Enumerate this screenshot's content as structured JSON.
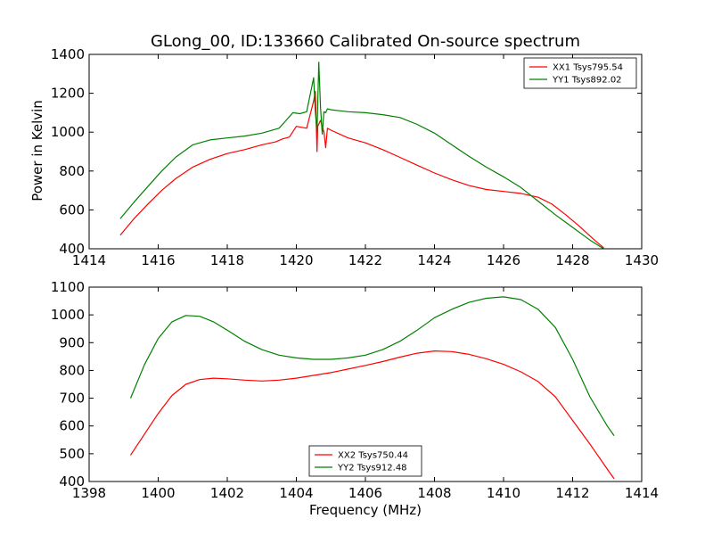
{
  "chart_data": [
    {
      "type": "line",
      "title": "GLong_00, ID:133660 Calibrated On-source spectrum",
      "xlabel": "",
      "ylabel": "Power in Kelvin",
      "xlim": [
        1414,
        1430
      ],
      "ylim": [
        400,
        1400
      ],
      "xticks": [
        "1414",
        "1416",
        "1418",
        "1420",
        "1422",
        "1424",
        "1426",
        "1428",
        "1430"
      ],
      "yticks": [
        "400",
        "600",
        "800",
        "1000",
        "1200",
        "1400"
      ],
      "legend_position": "top-right",
      "series": [
        {
          "name": "XX1 Tsys795.54",
          "color": "#ff0000",
          "x": [
            1414.9,
            1415.3,
            1415.7,
            1416.1,
            1416.5,
            1417.0,
            1417.5,
            1418.0,
            1418.5,
            1419.0,
            1419.4,
            1419.6,
            1419.8,
            1420.0,
            1420.3,
            1420.5,
            1420.55,
            1420.6,
            1420.62,
            1420.7,
            1420.8,
            1420.85,
            1420.9,
            1421.0,
            1421.5,
            1422.0,
            1422.5,
            1423.0,
            1423.5,
            1424.0,
            1424.5,
            1425.0,
            1425.5,
            1426.0,
            1426.5,
            1427.0,
            1427.4,
            1427.8,
            1428.2,
            1428.6,
            1428.9
          ],
          "values": [
            470,
            555,
            630,
            700,
            760,
            820,
            860,
            890,
            910,
            935,
            950,
            965,
            975,
            1030,
            1020,
            1160,
            1210,
            900,
            1030,
            1060,
            1000,
            920,
            1020,
            1010,
            970,
            945,
            910,
            870,
            830,
            790,
            755,
            725,
            705,
            695,
            685,
            665,
            630,
            575,
            515,
            450,
            405
          ]
        },
        {
          "name": "YY1 Tsys892.02",
          "color": "#008000",
          "x": [
            1414.9,
            1415.3,
            1415.7,
            1416.1,
            1416.5,
            1417.0,
            1417.5,
            1418.0,
            1418.5,
            1419.0,
            1419.5,
            1419.7,
            1419.9,
            1420.1,
            1420.3,
            1420.5,
            1420.55,
            1420.6,
            1420.65,
            1420.7,
            1420.75,
            1420.8,
            1420.85,
            1420.9,
            1421.0,
            1421.5,
            1422.0,
            1422.5,
            1423.0,
            1423.5,
            1424.0,
            1424.5,
            1425.0,
            1425.5,
            1426.0,
            1426.5,
            1427.0,
            1427.5,
            1428.0,
            1428.5,
            1428.9
          ],
          "values": [
            555,
            640,
            720,
            800,
            870,
            935,
            960,
            970,
            980,
            995,
            1020,
            1060,
            1100,
            1095,
            1105,
            1280,
            1105,
            1000,
            1360,
            1130,
            990,
            1105,
            1100,
            1120,
            1115,
            1105,
            1100,
            1090,
            1075,
            1040,
            995,
            935,
            875,
            820,
            770,
            715,
            645,
            575,
            510,
            445,
            400
          ]
        }
      ]
    },
    {
      "type": "line",
      "title": "",
      "xlabel": "Frequency (MHz)",
      "ylabel": "",
      "xlim": [
        1398,
        1414
      ],
      "ylim": [
        400,
        1100
      ],
      "xticks": [
        "1398",
        "1400",
        "1402",
        "1404",
        "1406",
        "1408",
        "1410",
        "1412",
        "1414"
      ],
      "yticks": [
        "400",
        "500",
        "600",
        "700",
        "800",
        "900",
        "1000",
        "1100"
      ],
      "legend_position": "bottom-center",
      "series": [
        {
          "name": "XX2 Tsys750.44",
          "color": "#ff0000",
          "x": [
            1399.2,
            1399.6,
            1400.0,
            1400.4,
            1400.8,
            1401.2,
            1401.6,
            1402.0,
            1402.5,
            1403.0,
            1403.5,
            1404.0,
            1404.5,
            1405.0,
            1405.5,
            1406.0,
            1406.5,
            1407.0,
            1407.5,
            1408.0,
            1408.5,
            1409.0,
            1409.5,
            1410.0,
            1410.5,
            1411.0,
            1411.5,
            1412.0,
            1412.5,
            1413.0,
            1413.2
          ],
          "values": [
            495,
            570,
            645,
            710,
            750,
            767,
            772,
            770,
            765,
            762,
            765,
            772,
            782,
            792,
            805,
            818,
            832,
            848,
            862,
            870,
            868,
            858,
            842,
            822,
            795,
            760,
            705,
            620,
            535,
            445,
            410
          ]
        },
        {
          "name": "YY2 Tsys912.48",
          "color": "#008000",
          "x": [
            1399.2,
            1399.6,
            1400.0,
            1400.4,
            1400.8,
            1401.2,
            1401.6,
            1402.0,
            1402.5,
            1403.0,
            1403.5,
            1404.0,
            1404.5,
            1405.0,
            1405.5,
            1406.0,
            1406.5,
            1407.0,
            1407.5,
            1408.0,
            1408.5,
            1409.0,
            1409.5,
            1410.0,
            1410.5,
            1411.0,
            1411.5,
            1412.0,
            1412.5,
            1413.0,
            1413.2
          ],
          "values": [
            700,
            820,
            915,
            975,
            998,
            995,
            975,
            945,
            905,
            875,
            855,
            845,
            840,
            840,
            845,
            855,
            875,
            905,
            945,
            990,
            1020,
            1045,
            1060,
            1065,
            1055,
            1020,
            955,
            840,
            705,
            600,
            565
          ]
        }
      ]
    }
  ]
}
